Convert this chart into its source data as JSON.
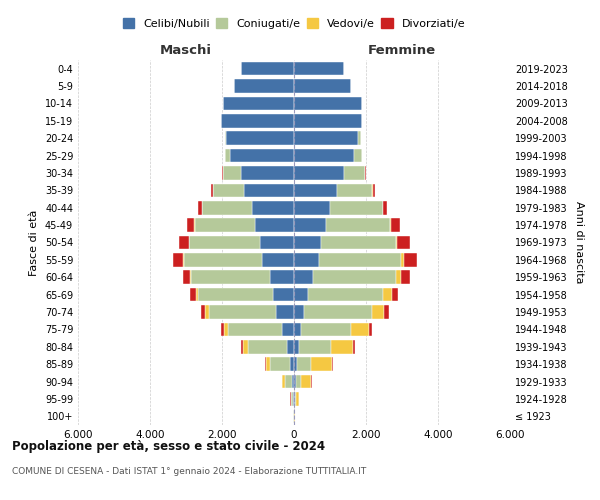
{
  "age_groups": [
    "100+",
    "95-99",
    "90-94",
    "85-89",
    "80-84",
    "75-79",
    "70-74",
    "65-69",
    "60-64",
    "55-59",
    "50-54",
    "45-49",
    "40-44",
    "35-39",
    "30-34",
    "25-29",
    "20-24",
    "15-19",
    "10-14",
    "5-9",
    "0-4"
  ],
  "birth_years": [
    "≤ 1923",
    "1924-1928",
    "1929-1933",
    "1934-1938",
    "1939-1943",
    "1944-1948",
    "1949-1953",
    "1954-1958",
    "1959-1963",
    "1964-1968",
    "1969-1973",
    "1974-1978",
    "1979-1983",
    "1984-1988",
    "1989-1993",
    "1994-1998",
    "1999-2003",
    "2004-2008",
    "2009-2013",
    "2014-2018",
    "2019-2023"
  ],
  "maschi_celibi": [
    10,
    25,
    55,
    100,
    190,
    340,
    490,
    580,
    680,
    880,
    940,
    1080,
    1180,
    1380,
    1480,
    1780,
    1880,
    2030,
    1980,
    1680,
    1480
  ],
  "maschi_coniugati": [
    4,
    45,
    190,
    580,
    1080,
    1480,
    1880,
    2080,
    2180,
    2180,
    1980,
    1680,
    1380,
    880,
    490,
    140,
    45,
    8,
    4,
    0,
    0
  ],
  "maschi_vedovi": [
    2,
    25,
    75,
    95,
    145,
    115,
    95,
    75,
    38,
    18,
    8,
    4,
    2,
    1,
    0,
    0,
    0,
    0,
    0,
    0,
    0
  ],
  "maschi_divorziati": [
    1,
    4,
    14,
    28,
    58,
    95,
    115,
    145,
    195,
    270,
    270,
    195,
    95,
    48,
    18,
    4,
    2,
    0,
    0,
    0,
    0
  ],
  "femmine_nubili": [
    8,
    18,
    48,
    75,
    145,
    195,
    290,
    390,
    540,
    690,
    740,
    890,
    990,
    1190,
    1390,
    1680,
    1780,
    1880,
    1880,
    1580,
    1380
  ],
  "femmine_coniugate": [
    4,
    38,
    145,
    390,
    890,
    1390,
    1880,
    2080,
    2280,
    2280,
    2080,
    1780,
    1480,
    990,
    590,
    195,
    75,
    14,
    4,
    0,
    0
  ],
  "femmine_vedove": [
    4,
    75,
    290,
    590,
    590,
    490,
    340,
    245,
    145,
    75,
    38,
    14,
    4,
    2,
    1,
    0,
    0,
    0,
    0,
    0,
    0
  ],
  "femmine_divorziate": [
    1,
    4,
    14,
    28,
    58,
    95,
    125,
    175,
    270,
    370,
    370,
    255,
    115,
    58,
    24,
    7,
    2,
    0,
    0,
    0,
    0
  ],
  "colors": {
    "celibi": "#4472a8",
    "coniugati": "#b5c99a",
    "vedovi": "#f5c842",
    "divorziati": "#cc2020"
  },
  "xlim": 6000,
  "title": "Popolazione per età, sesso e stato civile - 2024",
  "subtitle": "COMUNE DI CESENA - Dati ISTAT 1° gennaio 2024 - Elaborazione TUTTITALIA.IT",
  "xlabel_left": "Maschi",
  "xlabel_right": "Femmine",
  "ylabel_left": "Fasce di età",
  "ylabel_right": "Anni di nascita",
  "legend_labels": [
    "Celibi/Nubili",
    "Coniugati/e",
    "Vedovi/e",
    "Divorziati/e"
  ],
  "background_color": "#ffffff",
  "xticks": [
    -6000,
    -4000,
    -2000,
    0,
    2000,
    4000,
    6000
  ],
  "xticklabels": [
    "6.000",
    "4.000",
    "2.000",
    "0",
    "2.000",
    "4.000",
    "6.000"
  ]
}
